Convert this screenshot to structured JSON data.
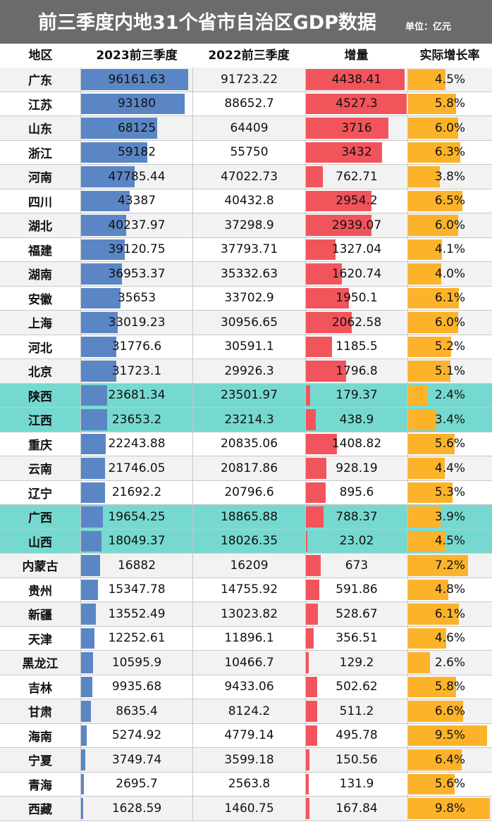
{
  "title": "前三季度内地31个省市自治区GDP数据",
  "unit": "单位：亿元",
  "headers": [
    "地区",
    "2023前三季度",
    "2022前三季度",
    "增量",
    "实际增长率"
  ],
  "colors": {
    "blue_bar": "#5b86c5",
    "red_bar": "#f2545b",
    "orange_bar": "#fcb32a",
    "highlight_row": "#76d9cf"
  },
  "chart_data": {
    "type": "table",
    "columns": [
      "地区",
      "2023前三季度",
      "2022前三季度",
      "增量",
      "实际增长率"
    ],
    "rows": [
      {
        "region": "广东",
        "gdp2023": "96161.63",
        "gdp2022": "91723.22",
        "increase": "4438.41",
        "growth": "4.5%",
        "v2023": 96161.63,
        "vinc": 4438.41,
        "vgr": 4.5,
        "hl": false
      },
      {
        "region": "江苏",
        "gdp2023": "93180",
        "gdp2022": "88652.7",
        "increase": "4527.3",
        "growth": "5.8%",
        "v2023": 93180,
        "vinc": 4527.3,
        "vgr": 5.8,
        "hl": false
      },
      {
        "region": "山东",
        "gdp2023": "68125",
        "gdp2022": "64409",
        "increase": "3716",
        "growth": "6.0%",
        "v2023": 68125,
        "vinc": 3716,
        "vgr": 6.0,
        "hl": false
      },
      {
        "region": "浙江",
        "gdp2023": "59182",
        "gdp2022": "55750",
        "increase": "3432",
        "growth": "6.3%",
        "v2023": 59182,
        "vinc": 3432,
        "vgr": 6.3,
        "hl": false
      },
      {
        "region": "河南",
        "gdp2023": "47785.44",
        "gdp2022": "47022.73",
        "increase": "762.71",
        "growth": "3.8%",
        "v2023": 47785.44,
        "vinc": 762.71,
        "vgr": 3.8,
        "hl": false
      },
      {
        "region": "四川",
        "gdp2023": "43387",
        "gdp2022": "40432.8",
        "increase": "2954.2",
        "growth": "6.5%",
        "v2023": 43387,
        "vinc": 2954.2,
        "vgr": 6.5,
        "hl": false
      },
      {
        "region": "湖北",
        "gdp2023": "40237.97",
        "gdp2022": "37298.9",
        "increase": "2939.07",
        "growth": "6.0%",
        "v2023": 40237.97,
        "vinc": 2939.07,
        "vgr": 6.0,
        "hl": false
      },
      {
        "region": "福建",
        "gdp2023": "39120.75",
        "gdp2022": "37793.71",
        "increase": "1327.04",
        "growth": "4.1%",
        "v2023": 39120.75,
        "vinc": 1327.04,
        "vgr": 4.1,
        "hl": false
      },
      {
        "region": "湖南",
        "gdp2023": "36953.37",
        "gdp2022": "35332.63",
        "increase": "1620.74",
        "growth": "4.0%",
        "v2023": 36953.37,
        "vinc": 1620.74,
        "vgr": 4.0,
        "hl": false
      },
      {
        "region": "安徽",
        "gdp2023": "35653",
        "gdp2022": "33702.9",
        "increase": "1950.1",
        "growth": "6.1%",
        "v2023": 35653,
        "vinc": 1950.1,
        "vgr": 6.1,
        "hl": false
      },
      {
        "region": "上海",
        "gdp2023": "33019.23",
        "gdp2022": "30956.65",
        "increase": "2062.58",
        "growth": "6.0%",
        "v2023": 33019.23,
        "vinc": 2062.58,
        "vgr": 6.0,
        "hl": false
      },
      {
        "region": "河北",
        "gdp2023": "31776.6",
        "gdp2022": "30591.1",
        "increase": "1185.5",
        "growth": "5.2%",
        "v2023": 31776.6,
        "vinc": 1185.5,
        "vgr": 5.2,
        "hl": false
      },
      {
        "region": "北京",
        "gdp2023": "31723.1",
        "gdp2022": "29926.3",
        "increase": "1796.8",
        "growth": "5.1%",
        "v2023": 31723.1,
        "vinc": 1796.8,
        "vgr": 5.1,
        "hl": false
      },
      {
        "region": "陕西",
        "gdp2023": "23681.34",
        "gdp2022": "23501.97",
        "increase": "179.37",
        "growth": "2.4%",
        "v2023": 23681.34,
        "vinc": 179.37,
        "vgr": 2.4,
        "hl": true
      },
      {
        "region": "江西",
        "gdp2023": "23653.2",
        "gdp2022": "23214.3",
        "increase": "438.9",
        "growth": "3.4%",
        "v2023": 23653.2,
        "vinc": 438.9,
        "vgr": 3.4,
        "hl": true
      },
      {
        "region": "重庆",
        "gdp2023": "22243.88",
        "gdp2022": "20835.06",
        "increase": "1408.82",
        "growth": "5.6%",
        "v2023": 22243.88,
        "vinc": 1408.82,
        "vgr": 5.6,
        "hl": false
      },
      {
        "region": "云南",
        "gdp2023": "21746.05",
        "gdp2022": "20817.86",
        "increase": "928.19",
        "growth": "4.4%",
        "v2023": 21746.05,
        "vinc": 928.19,
        "vgr": 4.4,
        "hl": false
      },
      {
        "region": "辽宁",
        "gdp2023": "21692.2",
        "gdp2022": "20796.6",
        "increase": "895.6",
        "growth": "5.3%",
        "v2023": 21692.2,
        "vinc": 895.6,
        "vgr": 5.3,
        "hl": false
      },
      {
        "region": "广西",
        "gdp2023": "19654.25",
        "gdp2022": "18865.88",
        "increase": "788.37",
        "growth": "3.9%",
        "v2023": 19654.25,
        "vinc": 788.37,
        "vgr": 3.9,
        "hl": true
      },
      {
        "region": "山西",
        "gdp2023": "18049.37",
        "gdp2022": "18026.35",
        "increase": "23.02",
        "growth": "4.5%",
        "v2023": 18049.37,
        "vinc": 23.02,
        "vgr": 4.5,
        "hl": true
      },
      {
        "region": "内蒙古",
        "gdp2023": "16882",
        "gdp2022": "16209",
        "increase": "673",
        "growth": "7.2%",
        "v2023": 16882,
        "vinc": 673,
        "vgr": 7.2,
        "hl": false
      },
      {
        "region": "贵州",
        "gdp2023": "15347.78",
        "gdp2022": "14755.92",
        "increase": "591.86",
        "growth": "4.8%",
        "v2023": 15347.78,
        "vinc": 591.86,
        "vgr": 4.8,
        "hl": false
      },
      {
        "region": "新疆",
        "gdp2023": "13552.49",
        "gdp2022": "13023.82",
        "increase": "528.67",
        "growth": "6.1%",
        "v2023": 13552.49,
        "vinc": 528.67,
        "vgr": 6.1,
        "hl": false
      },
      {
        "region": "天津",
        "gdp2023": "12252.61",
        "gdp2022": "11896.1",
        "increase": "356.51",
        "growth": "4.6%",
        "v2023": 12252.61,
        "vinc": 356.51,
        "vgr": 4.6,
        "hl": false
      },
      {
        "region": "黑龙江",
        "gdp2023": "10595.9",
        "gdp2022": "10466.7",
        "increase": "129.2",
        "growth": "2.6%",
        "v2023": 10595.9,
        "vinc": 129.2,
        "vgr": 2.6,
        "hl": false
      },
      {
        "region": "吉林",
        "gdp2023": "9935.68",
        "gdp2022": "9433.06",
        "increase": "502.62",
        "growth": "5.8%",
        "v2023": 9935.68,
        "vinc": 502.62,
        "vgr": 5.8,
        "hl": false
      },
      {
        "region": "甘肃",
        "gdp2023": "8635.4",
        "gdp2022": "8124.2",
        "increase": "511.2",
        "growth": "6.6%",
        "v2023": 8635.4,
        "vinc": 511.2,
        "vgr": 6.6,
        "hl": false
      },
      {
        "region": "海南",
        "gdp2023": "5274.92",
        "gdp2022": "4779.14",
        "increase": "495.78",
        "growth": "9.5%",
        "v2023": 5274.92,
        "vinc": 495.78,
        "vgr": 9.5,
        "hl": false
      },
      {
        "region": "宁夏",
        "gdp2023": "3749.74",
        "gdp2022": "3599.18",
        "increase": "150.56",
        "growth": "6.4%",
        "v2023": 3749.74,
        "vinc": 150.56,
        "vgr": 6.4,
        "hl": false
      },
      {
        "region": "青海",
        "gdp2023": "2695.7",
        "gdp2022": "2563.8",
        "increase": "131.9",
        "growth": "5.6%",
        "v2023": 2695.7,
        "vinc": 131.9,
        "vgr": 5.6,
        "hl": false
      },
      {
        "region": "西藏",
        "gdp2023": "1628.59",
        "gdp2022": "1460.75",
        "increase": "167.84",
        "growth": "9.8%",
        "v2023": 1628.59,
        "vinc": 167.84,
        "vgr": 9.8,
        "hl": false
      }
    ]
  }
}
